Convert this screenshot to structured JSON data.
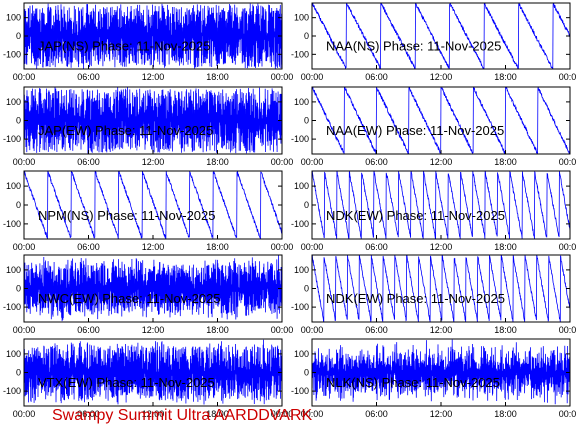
{
  "footer": "Swampy Summit Ultra AARDDVARK",
  "colors": {
    "trace": "#0000ff",
    "footer": "#cc0000",
    "axis": "#000000"
  },
  "chart_data": [
    {
      "type": "line",
      "title": "JAP(NS) Phase: 11-Nov-2025",
      "xticks": [
        "00:00",
        "06:00",
        "12:00",
        "18:00",
        "00:00"
      ],
      "yticks": [
        100,
        0,
        -100
      ],
      "ylim": [
        -180,
        180
      ],
      "xlim": [
        0,
        24
      ],
      "pattern": "dense",
      "density": 0.95
    },
    {
      "type": "line",
      "title": "NAA(NS) Phase: 11-Nov-2025",
      "xticks": [
        "00:00",
        "06:00",
        "12:00",
        "18:00",
        "00:00"
      ],
      "yticks": [
        100,
        0,
        -100
      ],
      "ylim": [
        -180,
        180
      ],
      "xlim": [
        0,
        24
      ],
      "pattern": "sawtooth",
      "period": 3.2
    },
    {
      "type": "line",
      "title": "JAP(EW) Phase: 11-Nov-2025",
      "xticks": [
        "00:00",
        "06:00",
        "12:00",
        "18:00",
        "00:00"
      ],
      "yticks": [
        100,
        0,
        -100
      ],
      "ylim": [
        -180,
        180
      ],
      "xlim": [
        0,
        24
      ],
      "pattern": "dense",
      "density": 0.95
    },
    {
      "type": "line",
      "title": "NAA(EW) Phase: 11-Nov-2025",
      "xticks": [
        "00:00",
        "06:00",
        "12:00",
        "18:00",
        "00:00"
      ],
      "yticks": [
        100,
        0,
        -100
      ],
      "ylim": [
        -180,
        180
      ],
      "xlim": [
        0,
        24
      ],
      "pattern": "sawtooth",
      "period": 3.0
    },
    {
      "type": "line",
      "title": "NPM(NS) Phase: 11-Nov-2025",
      "xticks": [
        "00:00",
        "06:00",
        "12:00",
        "18:00",
        "00:00"
      ],
      "yticks": [
        100,
        0,
        -100
      ],
      "ylim": [
        -180,
        180
      ],
      "xlim": [
        0,
        24
      ],
      "pattern": "sawtooth",
      "period": 2.2
    },
    {
      "type": "line",
      "title": "NDK(EW) Phase: 11-Nov-2025",
      "xticks": [
        "00:00",
        "06:00",
        "12:00",
        "18:00",
        "00:00"
      ],
      "yticks": [
        100,
        0,
        -100
      ],
      "ylim": [
        -180,
        180
      ],
      "xlim": [
        0,
        24
      ],
      "pattern": "sawtooth",
      "period": 1.15
    },
    {
      "type": "line",
      "title": "NWC(EW) Phase: 11-Nov-2025",
      "xticks": [
        "00:00",
        "06:00",
        "12:00",
        "18:00",
        "00:00"
      ],
      "yticks": [
        100,
        0,
        -100
      ],
      "ylim": [
        -180,
        180
      ],
      "xlim": [
        0,
        24
      ],
      "pattern": "dense",
      "density": 0.6
    },
    {
      "type": "line",
      "title": "NDK(EW) Phase: 11-Nov-2025",
      "xticks": [
        "00:00",
        "06:00",
        "12:00",
        "18:00",
        "00:00"
      ],
      "yticks": [
        100,
        0,
        -100
      ],
      "ylim": [
        -180,
        180
      ],
      "xlim": [
        0,
        24
      ],
      "pattern": "sawtooth",
      "period": 1.1
    },
    {
      "type": "line",
      "title": "VTX(EW) Phase: 11-Nov-2025",
      "xticks": [
        "00:00",
        "06:00",
        "12:00",
        "18:00",
        "00:00"
      ],
      "yticks": [
        100,
        0,
        -100
      ],
      "ylim": [
        -180,
        180
      ],
      "xlim": [
        0,
        24
      ],
      "pattern": "dense",
      "density": 0.7
    },
    {
      "type": "line",
      "title": "NLK(NS) Phase: 11-Nov-2025",
      "xticks": [
        "00:00",
        "06:00",
        "12:00",
        "18:00",
        "00:00"
      ],
      "yticks": [
        100,
        0,
        -100
      ],
      "ylim": [
        -180,
        180
      ],
      "xlim": [
        0,
        24
      ],
      "pattern": "dense",
      "density": 0.35
    }
  ]
}
